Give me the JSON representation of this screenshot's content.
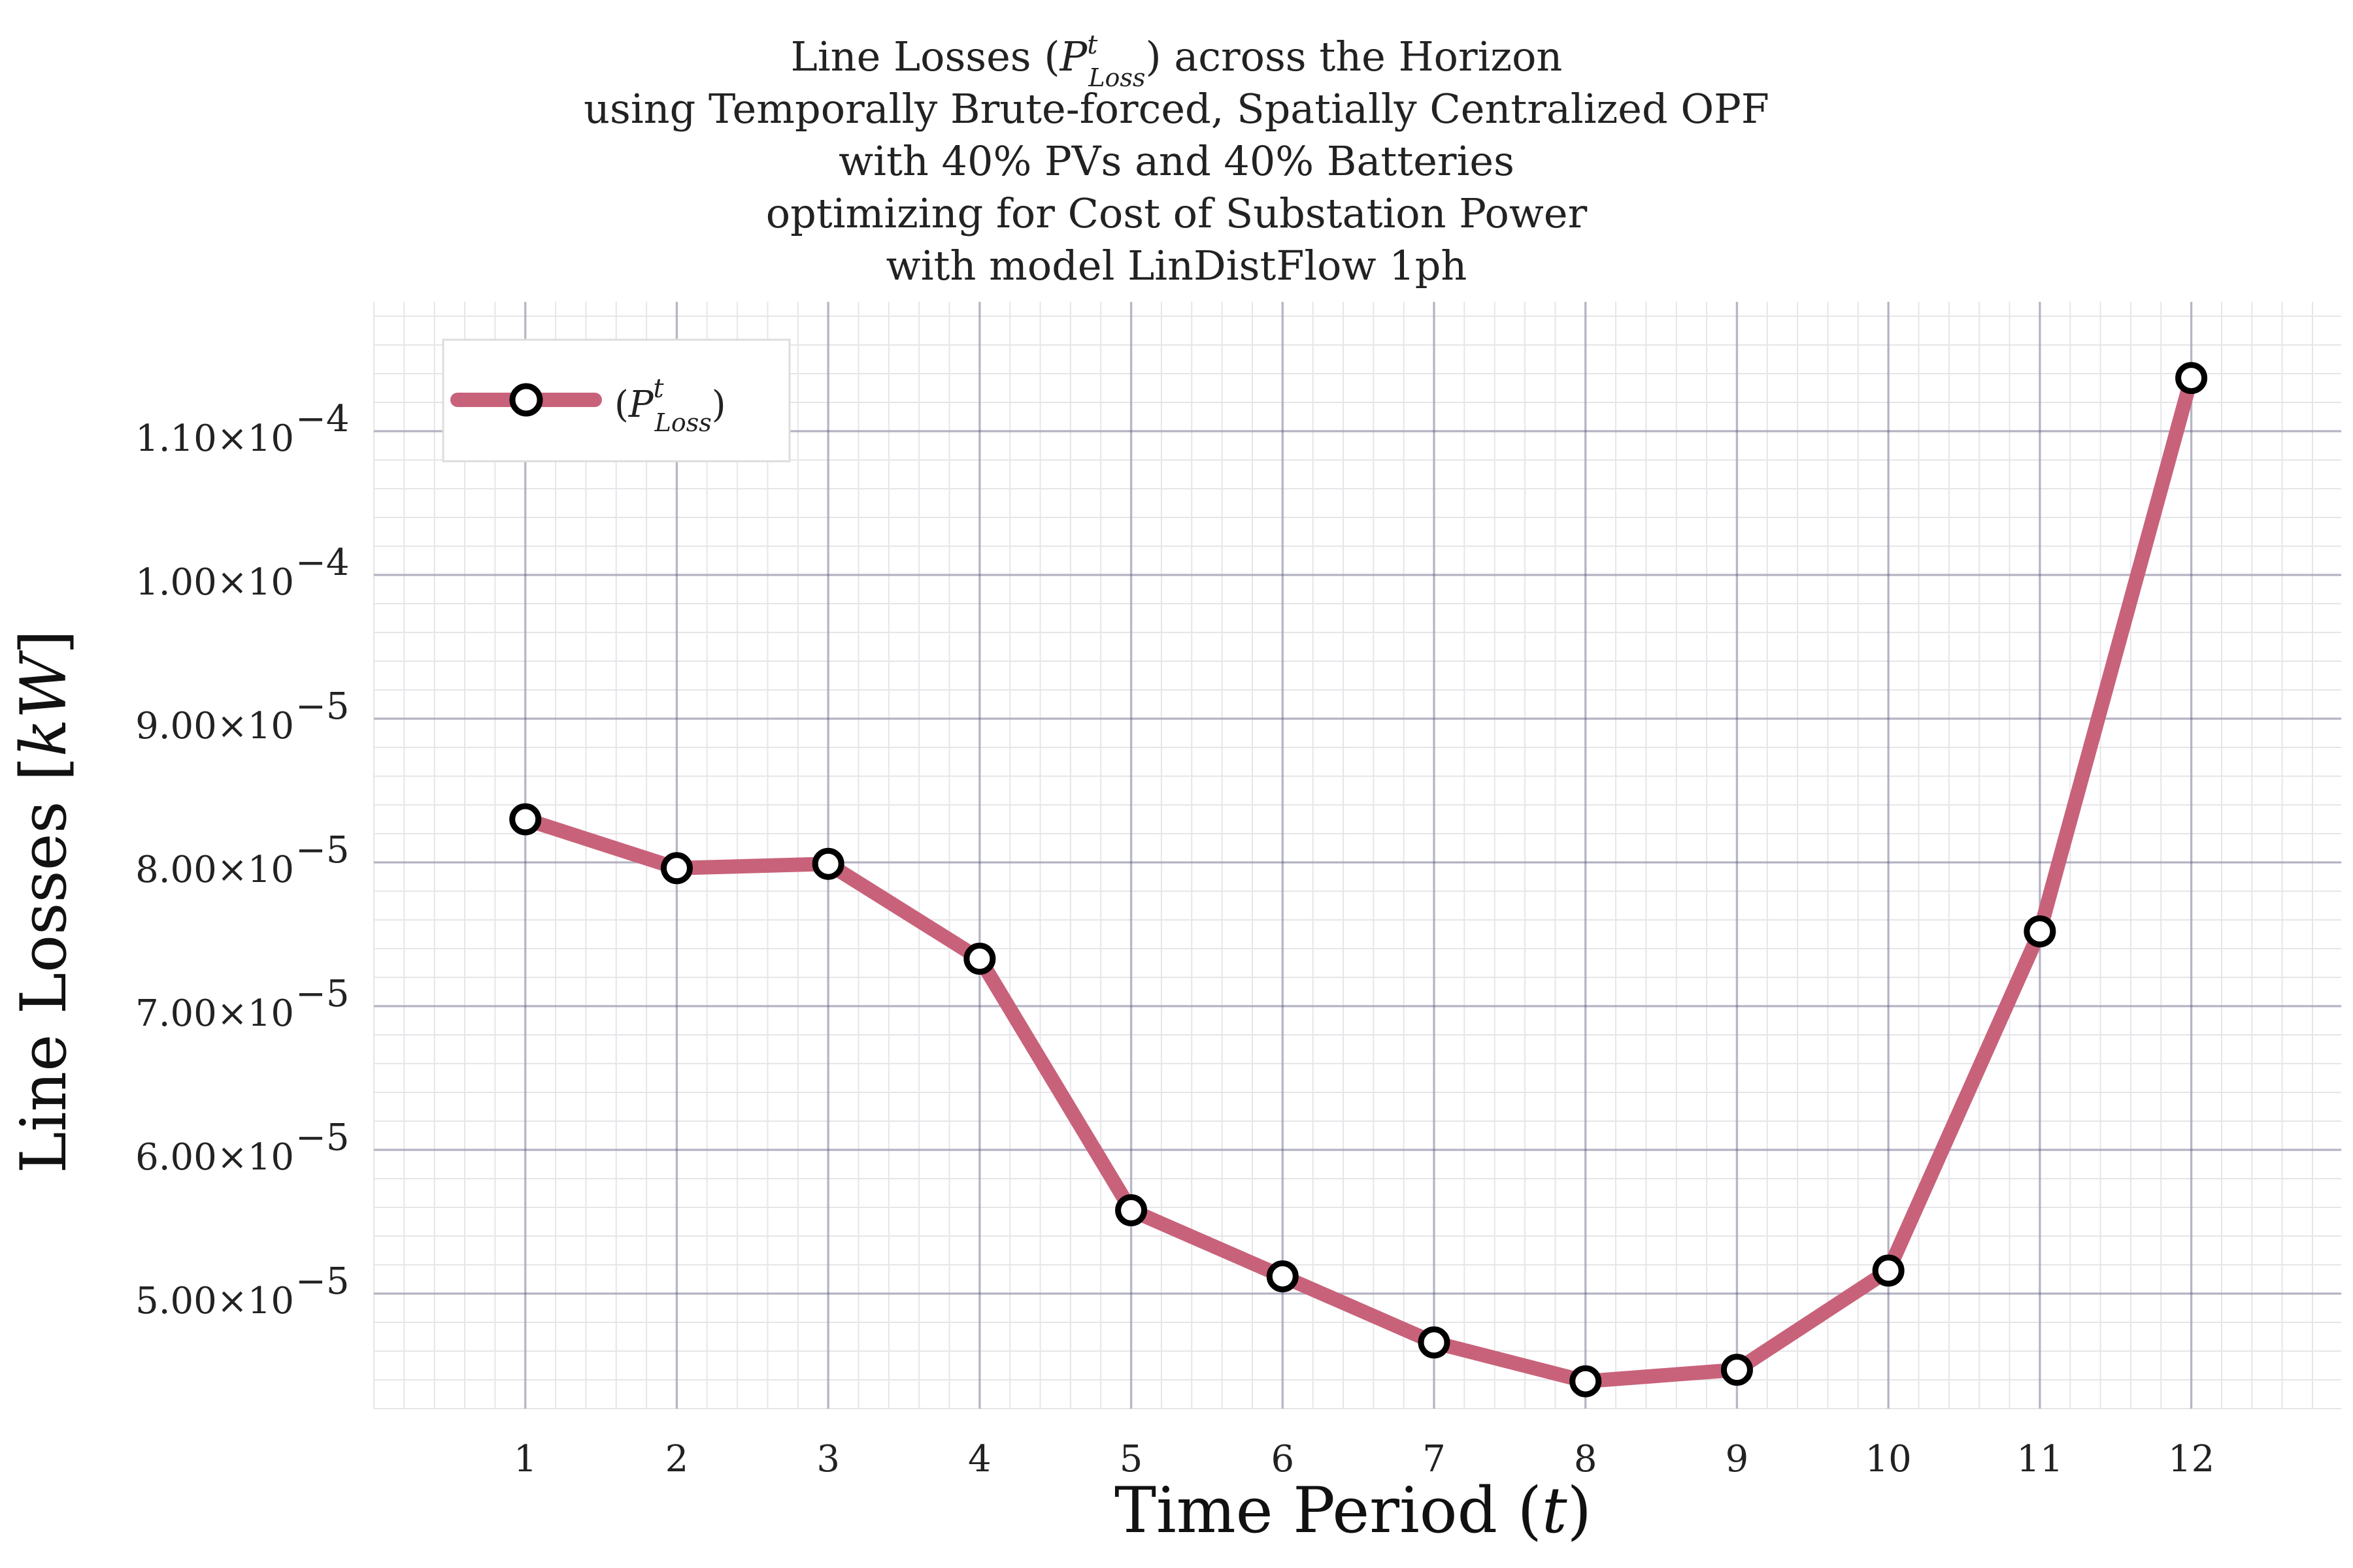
{
  "colors": {
    "line": "#c8627a",
    "marker_edge": "#000000",
    "major_grid": "#2b2b59",
    "minor_grid": "#e6e6ea"
  },
  "chart_data": {
    "type": "line",
    "title": [
      "Line Losses (P^t_Loss) across the Horizon",
      "using Temporally Brute-forced, Spatially Centralized OPF",
      "with 40% PVs and 40% Batteries",
      "optimizing for Cost of Substation Power",
      "with model LinDistFlow 1ph"
    ],
    "xlabel": "Time Period (t)",
    "ylabel": "Line Losses [kW]",
    "x": [
      1,
      2,
      3,
      4,
      5,
      6,
      7,
      8,
      9,
      10,
      11,
      12
    ],
    "series": [
      {
        "name": "(P^t_Loss)",
        "values": [
          8.3e-05,
          7.96e-05,
          7.99e-05,
          7.33e-05,
          5.58e-05,
          5.12e-05,
          4.66e-05,
          4.39e-05,
          4.47e-05,
          5.16e-05,
          7.52e-05,
          0.0001137
        ]
      }
    ],
    "xlim": [
      0,
      12.99
    ],
    "ylim": [
      4.2e-05,
      0.000119
    ],
    "xticks": [
      "1",
      "2",
      "3",
      "4",
      "5",
      "6",
      "7",
      "8",
      "9",
      "10",
      "11",
      "12"
    ],
    "yticks": [
      {
        "value": 5e-05,
        "mantissa": "5.00×10",
        "exponent": "−5"
      },
      {
        "value": 6e-05,
        "mantissa": "6.00×10",
        "exponent": "−5"
      },
      {
        "value": 7e-05,
        "mantissa": "7.00×10",
        "exponent": "−5"
      },
      {
        "value": 8e-05,
        "mantissa": "8.00×10",
        "exponent": "−5"
      },
      {
        "value": 9e-05,
        "mantissa": "9.00×10",
        "exponent": "−5"
      },
      {
        "value": 0.0001,
        "mantissa": "1.00×10",
        "exponent": "−4"
      },
      {
        "value": 0.00011,
        "mantissa": "1.10×10",
        "exponent": "−4"
      }
    ],
    "grid": true,
    "legend_position": "top-left"
  }
}
